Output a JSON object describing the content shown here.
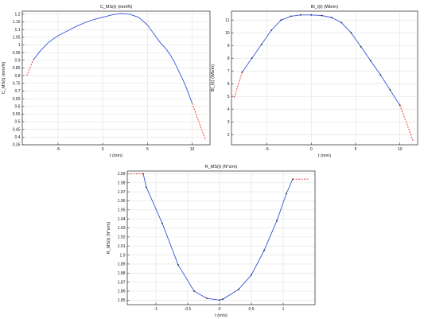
{
  "chart_data": [
    {
      "type": "line",
      "title": "C_MS(t) (mm/N)",
      "xlabel": "t (mm)",
      "ylabel": "C_MS(t) (mm/N)",
      "xlim": [
        -9,
        12
      ],
      "ylim": [
        0.35,
        1.22
      ],
      "xticks": [
        -5,
        0,
        5,
        10
      ],
      "yticks": [
        0.35,
        0.4,
        0.45,
        0.5,
        0.55,
        0.6,
        0.65,
        0.7,
        0.75,
        0.8,
        0.85,
        0.9,
        0.95,
        1,
        1.05,
        1.1,
        1.15,
        1.2
      ],
      "grid": true,
      "series": [
        {
          "role": "interpolation",
          "color": "#3355dd",
          "style": "solid",
          "x": [
            -7.8,
            -7,
            -6,
            -5,
            -4,
            -3,
            -2,
            -1,
            0,
            1,
            2,
            3,
            4,
            5,
            6,
            6.5,
            7,
            7.5,
            8,
            8.5,
            9,
            9.5,
            10
          ],
          "y": [
            0.9,
            0.96,
            1.02,
            1.06,
            1.09,
            1.12,
            1.145,
            1.165,
            1.18,
            1.195,
            1.205,
            1.2,
            1.18,
            1.13,
            1.05,
            1.01,
            0.98,
            0.94,
            0.89,
            0.83,
            0.77,
            0.7,
            0.62
          ]
        },
        {
          "role": "extrapolation",
          "color": "#ee2222",
          "style": "dashed",
          "x": [
            -8.5,
            -7.8
          ],
          "y": [
            0.8,
            0.9
          ]
        },
        {
          "role": "extrapolation",
          "color": "#ee2222",
          "style": "dashed",
          "x": [
            10,
            10.5,
            11,
            11.5
          ],
          "y": [
            0.62,
            0.54,
            0.46,
            0.38
          ]
        }
      ]
    },
    {
      "type": "line",
      "title": "Bl_t(t) (Wb/m)",
      "xlabel": "t (mm)",
      "ylabel": "Bl_t(t) (Wb/m)",
      "xlim": [
        -9,
        12
      ],
      "ylim": [
        1.2,
        11.7
      ],
      "xticks": [
        -5,
        0,
        5,
        10
      ],
      "yticks": [
        2,
        3,
        4,
        5,
        6,
        7,
        8,
        9,
        10,
        11
      ],
      "grid": true,
      "series": [
        {
          "role": "interpolation",
          "color": "#3355dd",
          "style": "solid",
          "markers": true,
          "x": [
            -7.8,
            -6.7,
            -5.6,
            -4.5,
            -3.4,
            -2.3,
            -1.2,
            0,
            1.2,
            2.3,
            3.4,
            4.5,
            5.6,
            6.7,
            7.8,
            8.9,
            10
          ],
          "y": [
            6.9,
            8.0,
            9.1,
            10.2,
            11.0,
            11.3,
            11.4,
            11.4,
            11.35,
            11.2,
            10.8,
            10.0,
            8.9,
            7.8,
            6.7,
            5.5,
            4.3
          ]
        },
        {
          "role": "extrapolation",
          "color": "#ee2222",
          "style": "dashed",
          "x": [
            -8.7,
            -7.8
          ],
          "y": [
            4.9,
            6.9
          ]
        },
        {
          "role": "extrapolation",
          "color": "#ee2222",
          "style": "dashed",
          "x": [
            10,
            11.5
          ],
          "y": [
            4.3,
            1.5
          ]
        }
      ]
    },
    {
      "type": "line",
      "title": "R_MS(t) (N*s/m)",
      "xlabel": "t (m/s)",
      "ylabel": "R_MS(t) (N*s/m)",
      "xlim": [
        -1.45,
        1.5
      ],
      "ylim": [
        1.845,
        1.993
      ],
      "xticks": [
        -1,
        -0.5,
        0,
        0.5,
        1
      ],
      "yticks": [
        1.85,
        1.86,
        1.87,
        1.88,
        1.89,
        1.9,
        1.91,
        1.92,
        1.93,
        1.94,
        1.95,
        1.96,
        1.97,
        1.98,
        1.99
      ],
      "grid": true,
      "series": [
        {
          "role": "interpolation",
          "color": "#3355dd",
          "style": "solid",
          "markers": true,
          "x": [
            -1.2,
            -1.15,
            -0.9,
            -0.65,
            -0.4,
            -0.2,
            0,
            0.05,
            0.3,
            0.5,
            0.7,
            0.9,
            1.05,
            1.15
          ],
          "y": [
            1.99,
            1.975,
            1.935,
            1.889,
            1.86,
            1.852,
            1.85,
            1.851,
            1.862,
            1.878,
            1.905,
            1.938,
            1.968,
            1.984
          ]
        },
        {
          "role": "extrapolation",
          "color": "#ee2222",
          "style": "dashed",
          "x": [
            -1.4,
            -1.2
          ],
          "y": [
            1.99,
            1.99
          ]
        },
        {
          "role": "extrapolation",
          "color": "#ee2222",
          "style": "dashed",
          "x": [
            1.15,
            1.4
          ],
          "y": [
            1.984,
            1.984
          ]
        }
      ]
    }
  ]
}
